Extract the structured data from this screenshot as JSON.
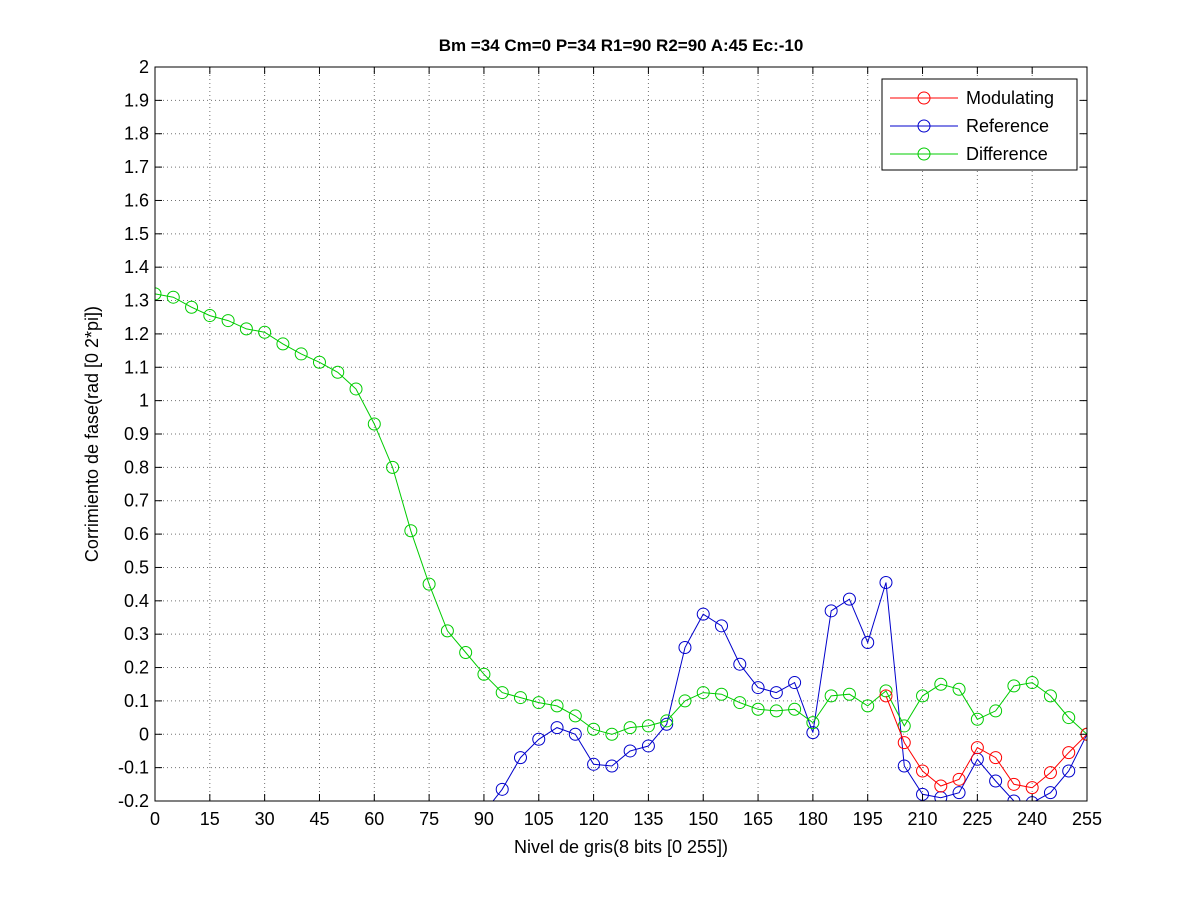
{
  "chart_data": {
    "type": "line",
    "title": "Bm =34  Cm=0  P=34  R1=90  R2=90  A:45  Ec:-10",
    "xlabel": "Nivel de gris(8 bits [0 255])",
    "ylabel": "Corrimiento de fase(rad [0 2*pi])",
    "xlim": [
      0,
      255
    ],
    "ylim": [
      -0.2,
      2
    ],
    "xticks": [
      "0",
      "15",
      "30",
      "45",
      "60",
      "75",
      "90",
      "105",
      "120",
      "135",
      "150",
      "165",
      "180",
      "195",
      "210",
      "225",
      "240",
      "255"
    ],
    "yticks": [
      "-0.2",
      "-0.1",
      "0",
      "0.1",
      "0.2",
      "0.3",
      "0.4",
      "0.5",
      "0.6",
      "0.7",
      "0.8",
      "0.9",
      "1",
      "1.1",
      "1.2",
      "1.3",
      "1.4",
      "1.5",
      "1.6",
      "1.7",
      "1.8",
      "1.9",
      "2"
    ],
    "grid": true,
    "legend_position": "top-right",
    "series": [
      {
        "name": "Modulating",
        "color": "#ff0000",
        "x": [
          200,
          205,
          210,
          215,
          220,
          225,
          230,
          235,
          240,
          245,
          250,
          255
        ],
        "y": [
          0.115,
          -0.025,
          -0.11,
          -0.155,
          -0.135,
          -0.04,
          -0.07,
          -0.15,
          -0.16,
          -0.115,
          -0.055,
          0.0
        ]
      },
      {
        "name": "Reference",
        "color": "#0000cc",
        "x": [
          90,
          95,
          100,
          105,
          110,
          115,
          120,
          125,
          130,
          135,
          140,
          145,
          150,
          155,
          160,
          165,
          170,
          175,
          180,
          185,
          190,
          195,
          200,
          205,
          210,
          215,
          220,
          225,
          230,
          235,
          240,
          245,
          250,
          255
        ],
        "y": [
          -0.235,
          -0.165,
          -0.07,
          -0.015,
          0.02,
          0.0,
          -0.09,
          -0.095,
          -0.05,
          -0.035,
          0.03,
          0.26,
          0.36,
          0.325,
          0.21,
          0.14,
          0.125,
          0.155,
          0.005,
          0.37,
          0.405,
          0.275,
          0.455,
          -0.095,
          -0.18,
          -0.19,
          -0.175,
          -0.075,
          -0.14,
          -0.2,
          -0.205,
          -0.175,
          -0.11,
          0.0
        ]
      },
      {
        "name": "Difference",
        "color": "#00cc00",
        "x": [
          0,
          5,
          10,
          15,
          20,
          25,
          30,
          35,
          40,
          45,
          50,
          55,
          60,
          65,
          70,
          75,
          80,
          85,
          90,
          95,
          100,
          105,
          110,
          115,
          120,
          125,
          130,
          135,
          140,
          145,
          150,
          155,
          160,
          165,
          170,
          175,
          180,
          185,
          190,
          195,
          200,
          205,
          210,
          215,
          220,
          225,
          230,
          235,
          240,
          245,
          250,
          255
        ],
        "y": [
          1.32,
          1.31,
          1.28,
          1.255,
          1.24,
          1.215,
          1.205,
          1.17,
          1.14,
          1.115,
          1.085,
          1.035,
          0.93,
          0.8,
          0.61,
          0.45,
          0.31,
          0.245,
          0.18,
          0.125,
          0.11,
          0.095,
          0.085,
          0.055,
          0.015,
          0.0,
          0.02,
          0.025,
          0.04,
          0.1,
          0.125,
          0.12,
          0.095,
          0.075,
          0.07,
          0.075,
          0.035,
          0.115,
          0.12,
          0.085,
          0.13,
          0.025,
          0.115,
          0.15,
          0.135,
          0.045,
          0.07,
          0.145,
          0.155,
          0.115,
          0.05,
          0.0
        ]
      }
    ]
  }
}
